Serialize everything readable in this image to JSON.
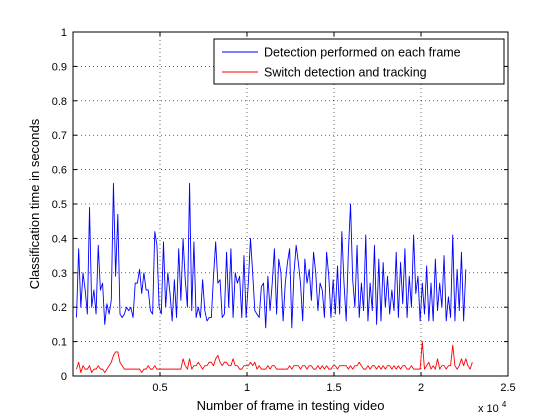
{
  "chart_data": {
    "type": "line",
    "xlabel": "Number of frame in testing video",
    "ylabel": "Classification time in seconds",
    "x_multiplier_label": "x 10",
    "x_multiplier_exp": "4",
    "xlim": [
      0,
      2.5
    ],
    "ylim": [
      0,
      1
    ],
    "xticks": [
      0.5,
      1,
      1.5,
      2,
      2.5
    ],
    "xtick_labels": [
      "0.5",
      "1",
      "1.5",
      "2",
      "2.5"
    ],
    "yticks": [
      0,
      0.1,
      0.2,
      0.3,
      0.4,
      0.5,
      0.6,
      0.7,
      0.8,
      0.9,
      1
    ],
    "ytick_labels": [
      "0",
      "0.1",
      "0.2",
      "0.3",
      "0.4",
      "0.5",
      "0.6",
      "0.7",
      "0.8",
      "0.9",
      "1"
    ],
    "grid": true,
    "legend_position": "top-right",
    "series": [
      {
        "name": "Detection performed on each frame",
        "color": "#0000ff",
        "x_start": 0.02,
        "x_step": 0.0125,
        "values": [
          0.17,
          0.37,
          0.2,
          0.3,
          0.25,
          0.18,
          0.49,
          0.2,
          0.25,
          0.18,
          0.38,
          0.25,
          0.27,
          0.15,
          0.21,
          0.18,
          0.22,
          0.56,
          0.29,
          0.47,
          0.18,
          0.17,
          0.18,
          0.2,
          0.19,
          0.2,
          0.17,
          0.27,
          0.27,
          0.31,
          0.24,
          0.3,
          0.25,
          0.25,
          0.19,
          0.18,
          0.42,
          0.38,
          0.2,
          0.18,
          0.39,
          0.2,
          0.3,
          0.24,
          0.16,
          0.28,
          0.17,
          0.37,
          0.22,
          0.4,
          0.28,
          0.2,
          0.56,
          0.19,
          0.39,
          0.17,
          0.2,
          0.17,
          0.28,
          0.19,
          0.16,
          0.17,
          0.17,
          0.29,
          0.39,
          0.27,
          0.28,
          0.17,
          0.18,
          0.36,
          0.2,
          0.37,
          0.17,
          0.3,
          0.27,
          0.29,
          0.17,
          0.35,
          0.17,
          0.27,
          0.4,
          0.3,
          0.19,
          0.18,
          0.17,
          0.26,
          0.27,
          0.14,
          0.29,
          0.19,
          0.27,
          0.37,
          0.18,
          0.34,
          0.3,
          0.16,
          0.27,
          0.33,
          0.37,
          0.14,
          0.3,
          0.38,
          0.33,
          0.27,
          0.16,
          0.34,
          0.27,
          0.31,
          0.22,
          0.36,
          0.3,
          0.19,
          0.27,
          0.25,
          0.17,
          0.36,
          0.29,
          0.17,
          0.28,
          0.18,
          0.32,
          0.18,
          0.42,
          0.27,
          0.16,
          0.36,
          0.5,
          0.28,
          0.2,
          0.38,
          0.17,
          0.27,
          0.19,
          0.41,
          0.16,
          0.27,
          0.19,
          0.38,
          0.15,
          0.34,
          0.16,
          0.33,
          0.2,
          0.29,
          0.18,
          0.25,
          0.19,
          0.36,
          0.17,
          0.33,
          0.21,
          0.37,
          0.17,
          0.29,
          0.2,
          0.41,
          0.24,
          0.29,
          0.16,
          0.27,
          0.18,
          0.32,
          0.16,
          0.27,
          0.16,
          0.34,
          0.19,
          0.27,
          0.2,
          0.35,
          0.16,
          0.23,
          0.17,
          0.41,
          0.16,
          0.31,
          0.19,
          0.36,
          0.16,
          0.31
        ]
      },
      {
        "name": "Switch detection and tracking",
        "color": "#ff0000",
        "x_start": 0.02,
        "x_step": 0.0125,
        "values": [
          0.02,
          0.04,
          0.01,
          0.03,
          0.02,
          0.02,
          0.03,
          0.01,
          0.02,
          0.02,
          0.03,
          0.02,
          0.02,
          0.01,
          0.02,
          0.03,
          0.04,
          0.06,
          0.07,
          0.07,
          0.04,
          0.03,
          0.02,
          0.02,
          0.02,
          0.02,
          0.02,
          0.02,
          0.02,
          0.02,
          0.01,
          0.02,
          0.02,
          0.03,
          0.02,
          0.02,
          0.03,
          0.02,
          0.02,
          0.02,
          0.02,
          0.02,
          0.02,
          0.02,
          0.02,
          0.02,
          0.02,
          0.02,
          0.02,
          0.05,
          0.03,
          0.02,
          0.05,
          0.02,
          0.03,
          0.03,
          0.04,
          0.03,
          0.02,
          0.03,
          0.03,
          0.04,
          0.04,
          0.03,
          0.05,
          0.06,
          0.04,
          0.03,
          0.04,
          0.04,
          0.03,
          0.03,
          0.05,
          0.03,
          0.03,
          0.02,
          0.02,
          0.03,
          0.03,
          0.03,
          0.04,
          0.03,
          0.04,
          0.02,
          0.03,
          0.02,
          0.02,
          0.02,
          0.03,
          0.02,
          0.03,
          0.03,
          0.02,
          0.02,
          0.02,
          0.02,
          0.02,
          0.02,
          0.03,
          0.02,
          0.03,
          0.03,
          0.03,
          0.02,
          0.03,
          0.03,
          0.02,
          0.03,
          0.03,
          0.02,
          0.02,
          0.03,
          0.02,
          0.03,
          0.02,
          0.03,
          0.02,
          0.02,
          0.03,
          0.03,
          0.02,
          0.03,
          0.03,
          0.03,
          0.03,
          0.02,
          0.03,
          0.02,
          0.03,
          0.03,
          0.04,
          0.03,
          0.02,
          0.02,
          0.03,
          0.02,
          0.03,
          0.03,
          0.02,
          0.03,
          0.02,
          0.03,
          0.02,
          0.03,
          0.03,
          0.02,
          0.03,
          0.02,
          0.03,
          0.02,
          0.03,
          0.03,
          0.02,
          0.02,
          0.03,
          0.02,
          0.02,
          0.02,
          0.02,
          0.1,
          0.02,
          0.03,
          0.04,
          0.02,
          0.03,
          0.02,
          0.05,
          0.02,
          0.03,
          0.03,
          0.02,
          0.03,
          0.03,
          0.09,
          0.03,
          0.02,
          0.03,
          0.05,
          0.03,
          0.05,
          0.03,
          0.02,
          0.04
        ]
      }
    ]
  }
}
